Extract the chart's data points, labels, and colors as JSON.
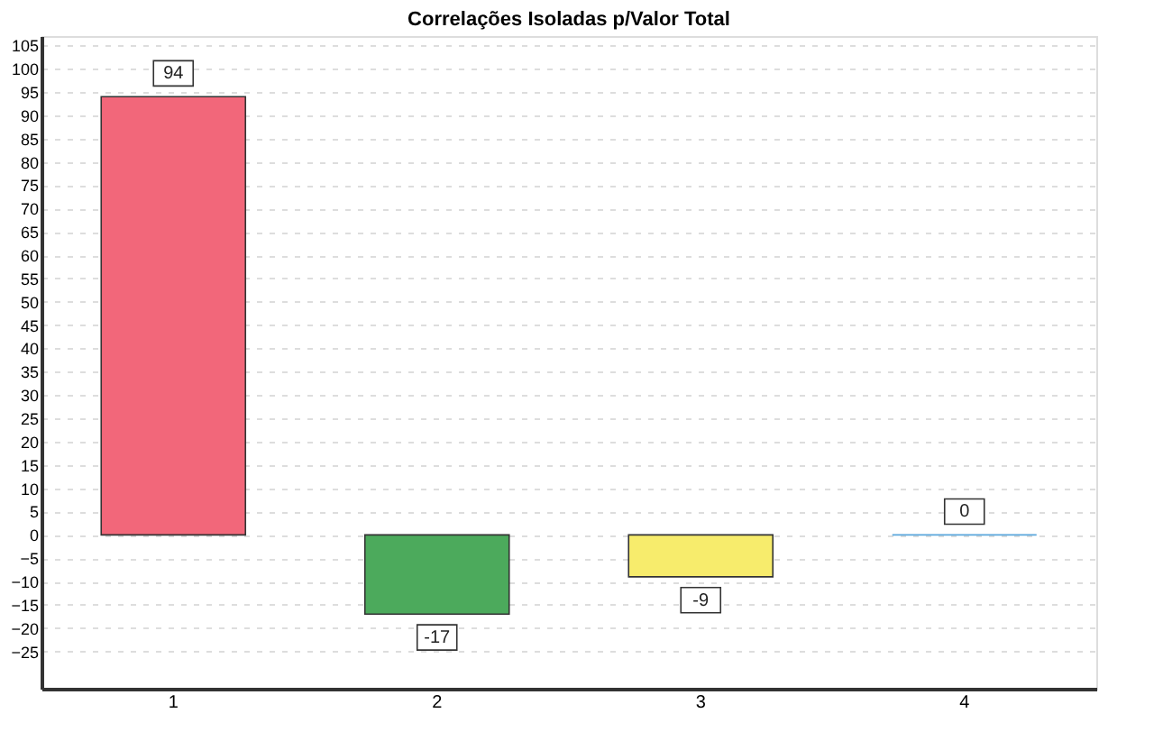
{
  "chart_data": {
    "type": "bar",
    "title": "Correlações Isoladas p/Valor Total",
    "categories": [
      "1",
      "2",
      "3",
      "4"
    ],
    "values": [
      94,
      -17,
      -9,
      0
    ],
    "colors": [
      "#f2677a",
      "#4caa5c",
      "#f7ec6c",
      "#5aa6dc"
    ],
    "ylim": [
      -33,
      107
    ],
    "yticks": [
      -25,
      -20,
      -15,
      -10,
      -5,
      0,
      5,
      10,
      15,
      20,
      25,
      30,
      35,
      40,
      45,
      50,
      55,
      60,
      65,
      70,
      75,
      80,
      85,
      90,
      95,
      100,
      105
    ],
    "grid": "y",
    "data_labels": true
  }
}
